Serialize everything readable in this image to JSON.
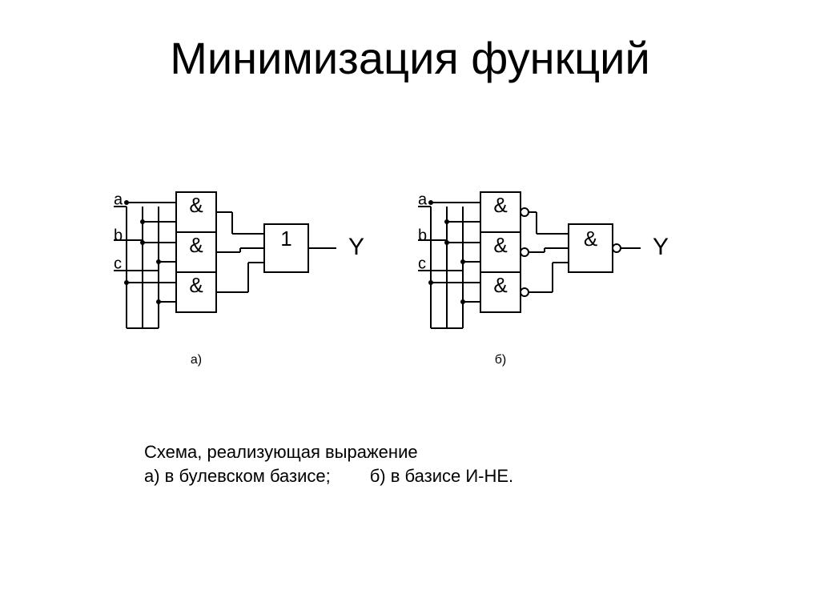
{
  "title": "Минимизация функций",
  "caption_line1": "Схема, реализующая выражение",
  "caption_line2_a": "а) в булевском базисе;",
  "caption_line2_b": "б) в базисе И-НЕ.",
  "diagram": {
    "type": "logic-circuit",
    "stroke": "#000000",
    "stroke_width": 2,
    "background": "#ffffff",
    "input_labels": [
      "a",
      "b",
      "c"
    ],
    "gate_symbol_and": "&",
    "gate_symbol_or": "1",
    "output_label": "Y",
    "sub_label_a": "а)",
    "sub_label_b": "б)",
    "font_size_input": 20,
    "font_size_gate": 26,
    "font_size_output": 30,
    "font_size_sublabel": 16,
    "left": {
      "nand_outputs": false,
      "final_gate": "1",
      "final_nand": false
    },
    "right": {
      "nand_outputs": true,
      "final_gate": "&",
      "final_nand": true
    }
  }
}
